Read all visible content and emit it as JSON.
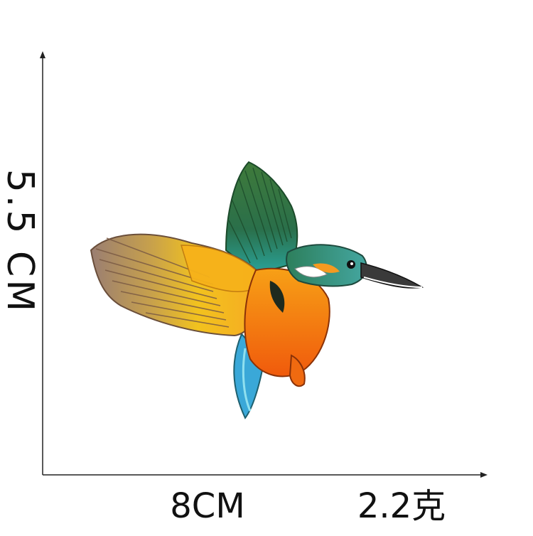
{
  "dimensions": {
    "height_label": "5.5 CM",
    "width_label": "8CM",
    "weight_label": "2.2克"
  },
  "image": {
    "subject_icon": "kingfisher-icon"
  },
  "colors": {
    "back_wing_green": "#2f6b3a",
    "front_wing_yellow": "#f2c21e",
    "wing_tips": "#9a7e72",
    "body_orange": "#f06a10",
    "head_teal": "#2f8f86",
    "beak": "#3a3a3a",
    "tail_blue": "#3aa8d8",
    "axis": "#222222"
  }
}
